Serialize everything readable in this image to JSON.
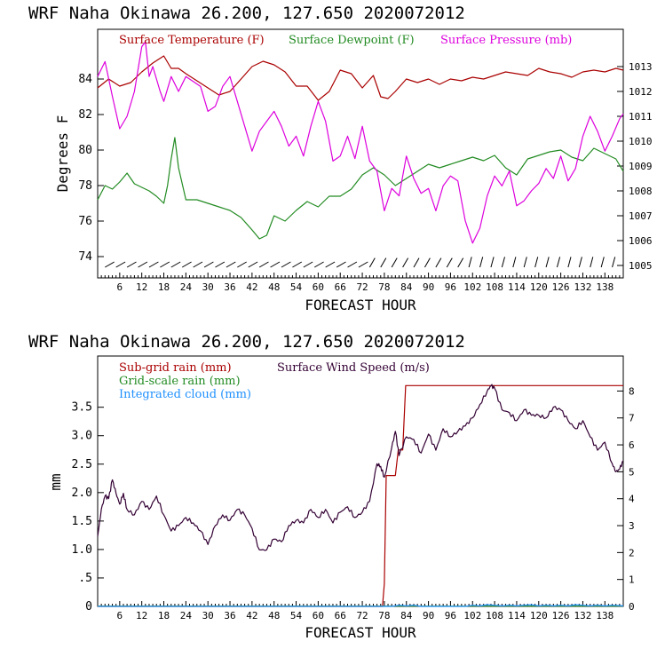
{
  "colors": {
    "temperature": "#aa0000",
    "dewpoint": "#228b22",
    "pressure": "#dd00dd",
    "subgrid_rain": "#aa0000",
    "grid_rain": "#228b22",
    "cloud": "#1e90ff",
    "wind": "#330033"
  },
  "chart_data": [
    {
      "type": "line",
      "title": "WRF   Naha Okinawa  26.200, 127.650  2020072012",
      "xlabel": "FORECAST HOUR",
      "ylabel": "Degrees F",
      "xlim": [
        0,
        143
      ],
      "ylim": [
        72.8,
        86.8
      ],
      "y2lim": [
        1004.5,
        1014.5
      ],
      "x_ticks": [
        "6",
        "12",
        "18",
        "24",
        "30",
        "36",
        "42",
        "48",
        "54",
        "60",
        "66",
        "72",
        "78",
        "84",
        "90",
        "96",
        "102",
        "108",
        "114",
        "120",
        "126",
        "132",
        "138"
      ],
      "y_ticks": [
        "84",
        "82",
        "80",
        "78",
        "76",
        "74"
      ],
      "y2_ticks": [
        "1013",
        "1012",
        "1011",
        "1010",
        "1009",
        "1008",
        "1007",
        "1006",
        "1005"
      ],
      "legend": [
        "Surface Temperature (F)",
        "Surface Dewpoint (F)",
        "Surface Pressure (mb)"
      ],
      "series": [
        {
          "name": "Surface Temperature (F)",
          "axis": "left",
          "x": [
            0,
            3,
            6,
            9,
            12,
            15,
            18,
            20,
            22,
            24,
            27,
            30,
            33,
            36,
            39,
            42,
            45,
            48,
            51,
            54,
            57,
            60,
            63,
            66,
            69,
            72,
            75,
            77,
            79,
            81,
            84,
            87,
            90,
            93,
            96,
            99,
            102,
            105,
            108,
            111,
            114,
            117,
            120,
            123,
            126,
            129,
            132,
            135,
            138,
            141,
            143
          ],
          "y": [
            83.5,
            84.0,
            83.6,
            83.8,
            84.4,
            84.9,
            85.3,
            84.6,
            84.6,
            84.3,
            83.9,
            83.5,
            83.1,
            83.3,
            84.0,
            84.7,
            85.0,
            84.8,
            84.4,
            83.6,
            83.6,
            82.8,
            83.3,
            84.5,
            84.3,
            83.5,
            84.2,
            83.0,
            82.9,
            83.3,
            84.0,
            83.8,
            84.0,
            83.7,
            84.0,
            83.9,
            84.1,
            84.0,
            84.2,
            84.4,
            84.3,
            84.2,
            84.6,
            84.4,
            84.3,
            84.1,
            84.4,
            84.5,
            84.4,
            84.6,
            84.5
          ]
        },
        {
          "name": "Surface Dewpoint (F)",
          "axis": "left",
          "x": [
            0,
            2,
            4,
            6,
            8,
            10,
            12,
            14,
            16,
            18,
            19,
            20,
            21,
            22,
            24,
            27,
            30,
            33,
            36,
            39,
            42,
            44,
            46,
            48,
            51,
            54,
            57,
            60,
            63,
            66,
            69,
            72,
            75,
            78,
            81,
            84,
            87,
            90,
            93,
            96,
            99,
            102,
            105,
            108,
            111,
            114,
            117,
            120,
            123,
            126,
            129,
            132,
            135,
            138,
            141,
            143
          ],
          "y": [
            77.2,
            78.0,
            77.8,
            78.2,
            78.7,
            78.1,
            77.9,
            77.7,
            77.4,
            77.0,
            78.0,
            79.5,
            80.7,
            79.0,
            77.2,
            77.2,
            77.0,
            76.8,
            76.6,
            76.2,
            75.5,
            75.0,
            75.2,
            76.3,
            76.0,
            76.6,
            77.1,
            76.8,
            77.4,
            77.4,
            77.8,
            78.6,
            79.0,
            78.6,
            78.0,
            78.4,
            78.8,
            79.2,
            79.0,
            79.2,
            79.4,
            79.6,
            79.4,
            79.7,
            79.0,
            78.6,
            79.5,
            79.7,
            79.9,
            80.0,
            79.6,
            79.4,
            80.1,
            79.8,
            79.5,
            78.8
          ]
        },
        {
          "name": "Surface Pressure (mb)",
          "axis": "right",
          "x": [
            0,
            2,
            4,
            6,
            8,
            10,
            12,
            13,
            14,
            15,
            17,
            18,
            20,
            22,
            24,
            26,
            28,
            30,
            32,
            34,
            36,
            38,
            40,
            42,
            44,
            46,
            48,
            50,
            52,
            54,
            56,
            58,
            60,
            62,
            64,
            66,
            68,
            70,
            72,
            74,
            76,
            78,
            80,
            82,
            84,
            86,
            88,
            90,
            92,
            94,
            96,
            98,
            100,
            102,
            104,
            106,
            108,
            110,
            112,
            114,
            116,
            118,
            120,
            122,
            124,
            126,
            128,
            130,
            132,
            134,
            136,
            138,
            140,
            142,
            143
          ],
          "y": [
            1012.6,
            1013.2,
            1011.8,
            1010.5,
            1011.0,
            1012.0,
            1013.8,
            1014.0,
            1012.6,
            1013.0,
            1012.0,
            1011.6,
            1012.6,
            1012.0,
            1012.6,
            1012.4,
            1012.2,
            1011.2,
            1011.4,
            1012.2,
            1012.6,
            1011.6,
            1010.6,
            1009.6,
            1010.4,
            1010.8,
            1011.2,
            1010.6,
            1009.8,
            1010.2,
            1009.4,
            1010.6,
            1011.6,
            1010.8,
            1009.2,
            1009.4,
            1010.2,
            1009.3,
            1010.6,
            1009.2,
            1008.8,
            1007.2,
            1008.1,
            1007.8,
            1009.4,
            1008.5,
            1007.9,
            1008.1,
            1007.2,
            1008.2,
            1008.6,
            1008.4,
            1006.8,
            1005.9,
            1006.5,
            1007.8,
            1008.6,
            1008.2,
            1008.8,
            1007.4,
            1007.6,
            1008.0,
            1008.3,
            1008.9,
            1008.5,
            1009.4,
            1008.4,
            1008.9,
            1010.2,
            1011.0,
            1010.4,
            1009.6,
            1010.2,
            1010.9,
            1011.1
          ]
        }
      ]
    },
    {
      "type": "line",
      "title": "WRF   Naha Okinawa  26.200, 127.650  2020072012",
      "xlabel": "FORECAST HOUR",
      "ylabel": "mm",
      "xlim": [
        0,
        143
      ],
      "ylim": [
        0,
        4.4
      ],
      "y2lim": [
        0,
        9.3
      ],
      "x_ticks": [
        "6",
        "12",
        "18",
        "24",
        "30",
        "36",
        "42",
        "48",
        "54",
        "60",
        "66",
        "72",
        "78",
        "84",
        "90",
        "96",
        "102",
        "108",
        "114",
        "120",
        "126",
        "132",
        "138"
      ],
      "y_ticks": [
        "3.5",
        "3.0",
        "2.5",
        "2.0",
        "1.5",
        "1.0",
        ".5",
        "0"
      ],
      "y2_ticks": [
        "8",
        "7",
        "6",
        "5",
        "4",
        "3",
        "2",
        "1",
        "0"
      ],
      "legend": [
        "Sub-grid rain (mm)",
        "Surface Wind Speed (m/s)",
        "Grid-scale rain (mm)",
        "Integrated cloud (mm)"
      ],
      "series": [
        {
          "name": "Sub-grid rain (mm)",
          "axis": "left",
          "x": [
            0,
            77.5,
            78,
            78.5,
            81,
            81.8,
            83,
            83.8,
            143
          ],
          "y": [
            0,
            0,
            0.4,
            2.3,
            2.3,
            2.75,
            2.75,
            3.88,
            3.88
          ]
        },
        {
          "name": "Grid-scale rain (mm)",
          "axis": "left",
          "x": [
            0,
            143
          ],
          "y": [
            0.005,
            0.005
          ]
        },
        {
          "name": "Integrated cloud (mm)",
          "axis": "left",
          "x": [
            0,
            80,
            82,
            84,
            86,
            88,
            100,
            102,
            104,
            106,
            108,
            110,
            112,
            114,
            116,
            118,
            120,
            122,
            124,
            126,
            128,
            130,
            132,
            134,
            136,
            138,
            140,
            143
          ],
          "y": [
            0,
            0,
            0.02,
            0.01,
            0.02,
            0,
            0,
            0.02,
            0.01,
            0.03,
            0.02,
            0.01,
            0.02,
            0.01,
            0.02,
            0.03,
            0.01,
            0.02,
            0.01,
            0.02,
            0.01,
            0.03,
            0.02,
            0.01,
            0.02,
            0.01,
            0.02,
            0.01
          ]
        },
        {
          "name": "Surface Wind Speed (m/s)",
          "axis": "right",
          "x": [
            0,
            1,
            2,
            3,
            4,
            5,
            6,
            7,
            8,
            10,
            12,
            14,
            16,
            18,
            20,
            22,
            24,
            26,
            28,
            30,
            32,
            34,
            36,
            38,
            40,
            42,
            44,
            46,
            48,
            50,
            52,
            54,
            56,
            58,
            60,
            62,
            64,
            66,
            68,
            70,
            72,
            74,
            76,
            77,
            78,
            80,
            81,
            82,
            84,
            86,
            88,
            90,
            92,
            94,
            96,
            98,
            100,
            102,
            104,
            106,
            107,
            108,
            110,
            112,
            114,
            116,
            118,
            120,
            122,
            124,
            126,
            128,
            130,
            132,
            134,
            136,
            138,
            140,
            141,
            142,
            143
          ],
          "y": [
            2.6,
            3.6,
            4.1,
            4.0,
            4.7,
            4.2,
            3.8,
            4.2,
            3.6,
            3.4,
            3.9,
            3.6,
            4.1,
            3.4,
            2.8,
            3.0,
            3.3,
            3.1,
            2.8,
            2.3,
            3.0,
            3.4,
            3.2,
            3.6,
            3.4,
            2.9,
            2.1,
            2.1,
            2.5,
            2.4,
            3.0,
            3.2,
            3.1,
            3.6,
            3.3,
            3.6,
            3.1,
            3.5,
            3.7,
            3.3,
            3.5,
            3.9,
            5.3,
            5.2,
            4.8,
            5.9,
            6.5,
            5.6,
            6.3,
            6.2,
            5.7,
            6.4,
            5.8,
            6.6,
            6.3,
            6.5,
            6.7,
            7.0,
            7.5,
            8.0,
            8.2,
            8.1,
            7.3,
            7.2,
            6.9,
            7.3,
            7.1,
            7.1,
            7.0,
            7.4,
            7.3,
            6.9,
            6.6,
            6.9,
            6.3,
            5.8,
            6.1,
            5.3,
            5.0,
            5.1,
            5.4
          ]
        }
      ]
    }
  ]
}
